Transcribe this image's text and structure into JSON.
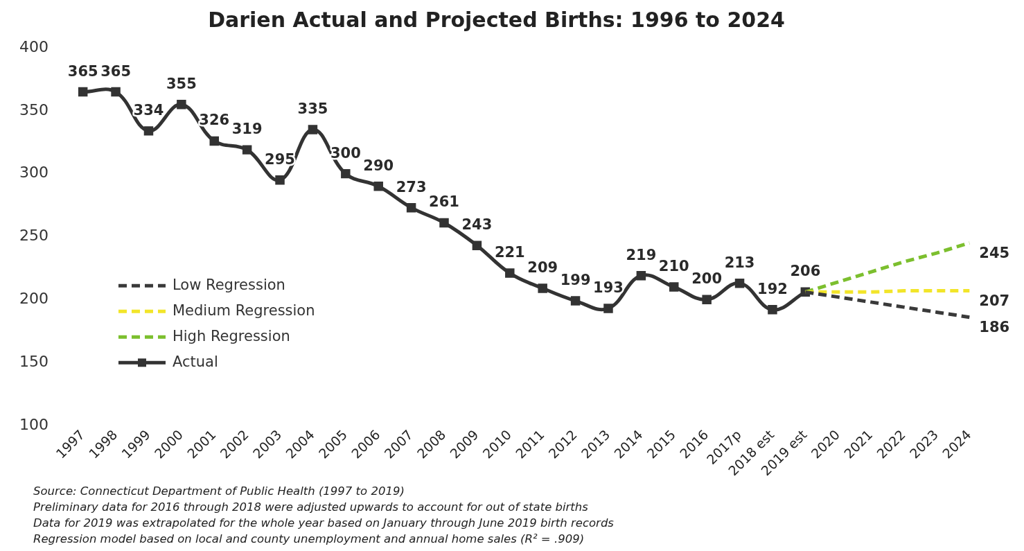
{
  "chart_data": {
    "type": "line",
    "title": "Darien Actual and Projected Births: 1996 to 2024",
    "categories": [
      "1997",
      "1998",
      "1999",
      "2000",
      "2001",
      "2002",
      "2003",
      "2004",
      "2005",
      "2006",
      "2007",
      "2008",
      "2009",
      "2010",
      "2011",
      "2012",
      "2013",
      "2014",
      "2015",
      "2016",
      "2017p",
      "2018 est",
      "2019 est",
      "2020",
      "2021",
      "2022",
      "2023",
      "2024"
    ],
    "series": [
      {
        "name": "Low Regression",
        "color": "#3a3a3a",
        "line_style": "dashed",
        "marker": "none",
        "values": [
          null,
          null,
          null,
          null,
          null,
          null,
          null,
          null,
          null,
          null,
          null,
          null,
          null,
          null,
          null,
          null,
          null,
          null,
          null,
          null,
          null,
          null,
          206,
          202,
          198,
          194,
          190,
          186
        ],
        "value_labels": [
          null,
          null,
          null,
          null,
          null,
          null,
          null,
          null,
          null,
          null,
          null,
          null,
          null,
          null,
          null,
          null,
          null,
          null,
          null,
          null,
          null,
          null,
          null,
          null,
          null,
          null,
          null,
          "186"
        ]
      },
      {
        "name": "Medium Regression",
        "color": "#f2e52a",
        "line_style": "dashed",
        "marker": "none",
        "values": [
          null,
          null,
          null,
          null,
          null,
          null,
          null,
          null,
          null,
          null,
          null,
          null,
          null,
          null,
          null,
          null,
          null,
          null,
          null,
          null,
          null,
          null,
          206,
          206,
          206,
          207,
          207,
          207
        ],
        "value_labels": [
          null,
          null,
          null,
          null,
          null,
          null,
          null,
          null,
          null,
          null,
          null,
          null,
          null,
          null,
          null,
          null,
          null,
          null,
          null,
          null,
          null,
          null,
          null,
          null,
          null,
          null,
          null,
          "207"
        ]
      },
      {
        "name": "High Regression",
        "color": "#7cbf2e",
        "line_style": "dashed",
        "marker": "none",
        "values": [
          null,
          null,
          null,
          null,
          null,
          null,
          null,
          null,
          null,
          null,
          null,
          null,
          null,
          null,
          null,
          null,
          null,
          null,
          null,
          null,
          null,
          null,
          206,
          214,
          222,
          230,
          237,
          245
        ],
        "value_labels": [
          null,
          null,
          null,
          null,
          null,
          null,
          null,
          null,
          null,
          null,
          null,
          null,
          null,
          null,
          null,
          null,
          null,
          null,
          null,
          null,
          null,
          null,
          null,
          null,
          null,
          null,
          null,
          "245"
        ]
      },
      {
        "name": "Actual",
        "color": "#333333",
        "line_style": "solid",
        "marker": "square",
        "values": [
          365,
          365,
          334,
          355,
          326,
          319,
          295,
          335,
          300,
          290,
          273,
          261,
          243,
          221,
          209,
          199,
          193,
          219,
          210,
          200,
          213,
          192,
          206,
          null,
          null,
          null,
          null,
          null
        ],
        "value_labels": [
          "365",
          "365",
          "334",
          "355",
          "326",
          "319",
          "295",
          "335",
          "300",
          "290",
          "273",
          "261",
          "243",
          "221",
          "209",
          "199",
          "193",
          "219",
          "210",
          "200",
          "213",
          "192",
          "206",
          null,
          null,
          null,
          null,
          null
        ]
      }
    ],
    "ylim": [
      100,
      400
    ],
    "yticks": [
      100,
      150,
      200,
      250,
      300,
      350,
      400
    ],
    "grid": false,
    "legend": "left",
    "annotations": [
      "Source: Connecticut Department of Public Health (1997 to 2019)",
      "Preliminary data for 2016 through 2018 were adjusted upwards to account for out of state births",
      "Data for 2019 was extrapolated for the whole year based on January through June 2019 birth records",
      "Regression model based on local and county unemployment and annual home sales (R² = .909)"
    ]
  }
}
